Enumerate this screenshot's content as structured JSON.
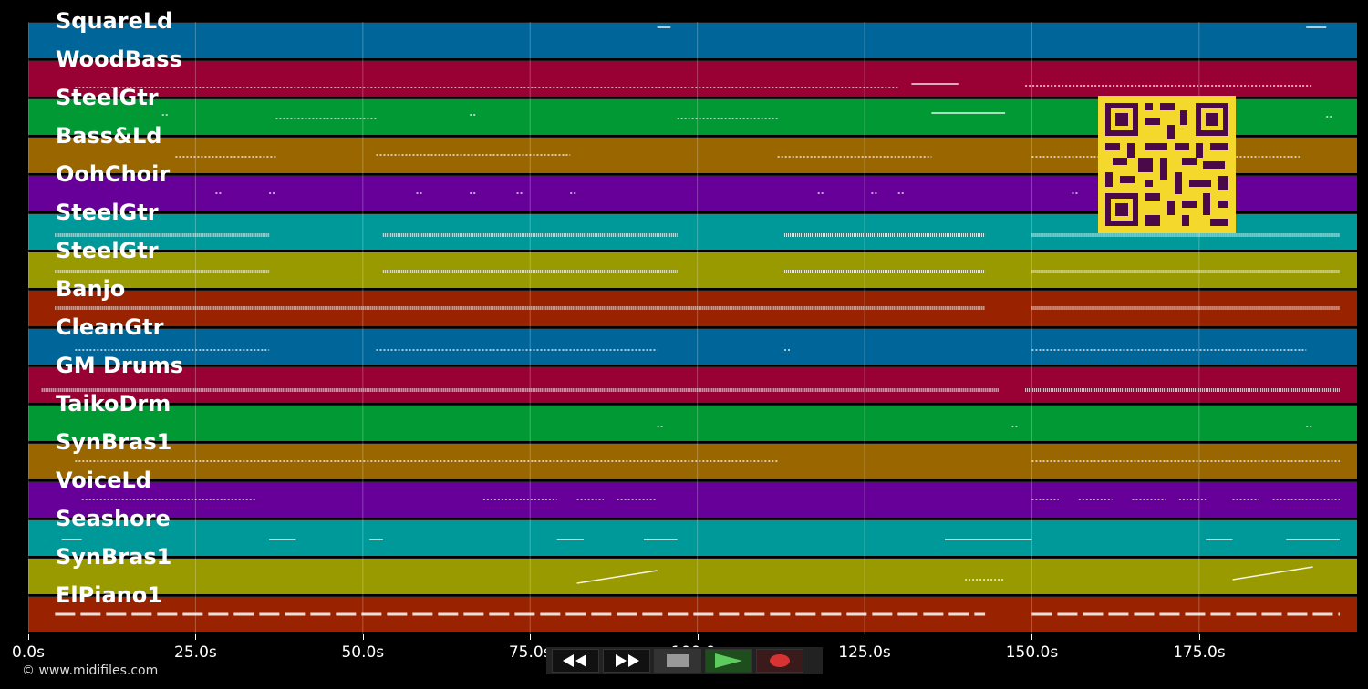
{
  "tracks": [
    {
      "name": "SquareLd",
      "color": "#006699"
    },
    {
      "name": "WoodBass",
      "color": "#990033"
    },
    {
      "name": "SteelGtr",
      "color": "#009933"
    },
    {
      "name": "Bass&Ld",
      "color": "#996600"
    },
    {
      "name": "OohChoir",
      "color": "#660099"
    },
    {
      "name": "SteelGtr",
      "color": "#009999"
    },
    {
      "name": "SteelGtr",
      "color": "#999900"
    },
    {
      "name": "Banjo",
      "color": "#992200"
    },
    {
      "name": "CleanGtr",
      "color": "#006699"
    },
    {
      "name": "GM Drums",
      "color": "#990033"
    },
    {
      "name": "TaikoDrm",
      "color": "#009933"
    },
    {
      "name": "SynBras1",
      "color": "#996600"
    },
    {
      "name": "VoiceLd",
      "color": "#660099"
    },
    {
      "name": "Seashore",
      "color": "#009999"
    },
    {
      "name": "SynBras1",
      "color": "#999900"
    },
    {
      "name": "ElPiano1",
      "color": "#992200"
    }
  ],
  "timeline": {
    "duration_s": 198.6,
    "ticks": [
      {
        "value": 0,
        "label": "0.0s"
      },
      {
        "value": 25,
        "label": "25.0s"
      },
      {
        "value": 50,
        "label": "50.0s"
      },
      {
        "value": 75,
        "label": "75.0s"
      },
      {
        "value": 100,
        "label": "100.0s"
      },
      {
        "value": 125,
        "label": "125.0s"
      },
      {
        "value": 150,
        "label": "150.0s"
      },
      {
        "value": 175,
        "label": "175.0s"
      }
    ]
  },
  "copyright": "© www.midifiles.com",
  "transport": {
    "rewind_icon": "rewind-icon",
    "fastforward_icon": "fast-forward-icon",
    "stop_icon": "stop-icon",
    "play_icon": "play-icon",
    "record_icon": "record-icon"
  },
  "qr_icon": "qr-code-icon"
}
